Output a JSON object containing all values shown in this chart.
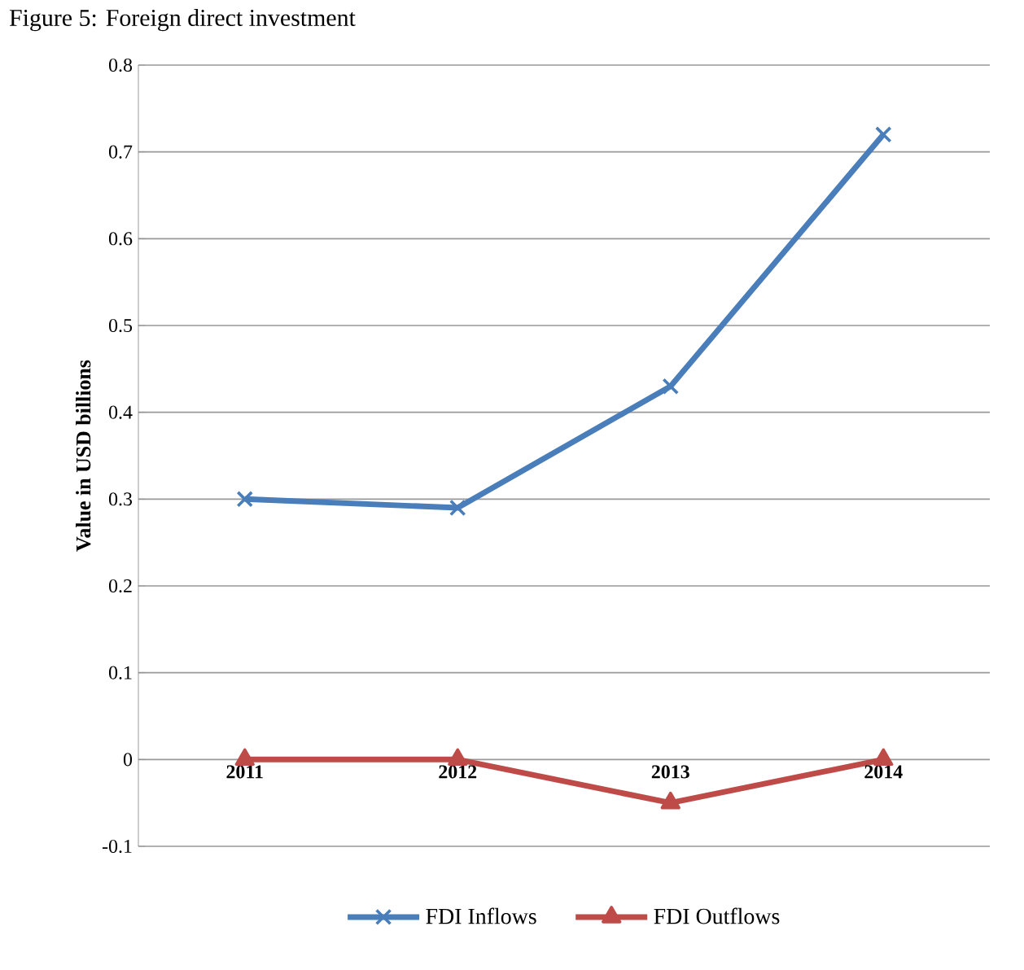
{
  "chart_data": {
    "type": "line",
    "title": "Figure 5: Foreign direct investment",
    "ylabel": "Value in USD billions",
    "categories": [
      "2011",
      "2012",
      "2013",
      "2014"
    ],
    "series": [
      {
        "name": "FDI Inflows",
        "color": "#4a7ebb",
        "marker": "cross",
        "values": [
          0.3,
          0.29,
          0.43,
          0.72
        ]
      },
      {
        "name": "FDI Outflows",
        "color": "#be4b48",
        "marker": "triangle",
        "values": [
          0,
          0,
          -0.05,
          0
        ]
      }
    ],
    "ylim": [
      -0.1,
      0.8
    ],
    "yticks": [
      -0.1,
      0,
      0.1,
      0.2,
      0.3,
      0.4,
      0.5,
      0.6,
      0.7,
      0.8
    ],
    "grid": "y",
    "legend": "bottom"
  }
}
